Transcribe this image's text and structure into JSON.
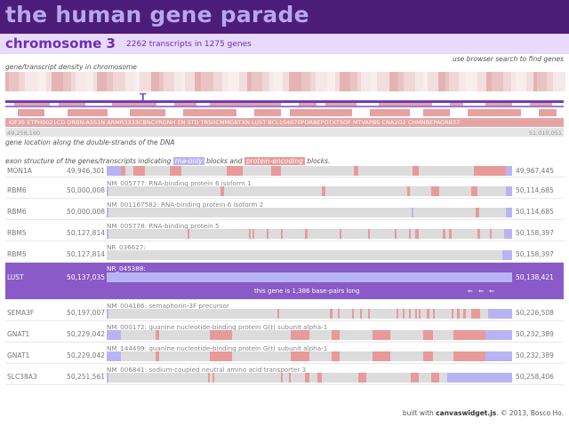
{
  "app": {
    "title": "the human gene parade"
  },
  "chromosome": {
    "title": "chromosome 3",
    "stats": "2262 transcripts in 1275 genes"
  },
  "notes": {
    "search_hint": "use browser search to find genes",
    "density_label": "gene/transcript density in chromosome",
    "location_label": "gene location along the double-strands of the DNA",
    "structure_prefix": "exon structure of the genes/transcripts indicating",
    "structure_rna": "rna-only",
    "structure_mid": "blocks and",
    "structure_protein": "protein-encoding",
    "structure_suffix": "blocks."
  },
  "density_marker": "T",
  "location": {
    "gene_labels": "KIF35  ETPH0021CD   ORBN-ASS1N  ARMR3333CBNCYRGNH  EN STD TRS0CMMGBTXN  LUST BCL1S4670PDRBEPOTXTSOF  MTVAPBS  CNA2O2  CHMNBEPAGRB37",
    "start_coord": "49,256,160",
    "end_coord": "51,010,051"
  },
  "colors": {
    "rna_only": "#b8b4f4",
    "protein_encoding": "#e89a9a",
    "track": "#dcdcdc",
    "selected_row": "#8a5ac8",
    "header": "#4b1c78",
    "chromosome_bar": "#e9d9fa"
  },
  "genes": [
    {
      "gene": "MON1A",
      "start": "49,946,301",
      "end": "49,967,445",
      "description": "",
      "selected": false,
      "exons": [
        {
          "s": 0.0,
          "e": 0.035,
          "t": "rna"
        },
        {
          "s": 0.035,
          "e": 0.045,
          "t": "protein"
        },
        {
          "s": 0.065,
          "e": 0.095,
          "t": "protein"
        },
        {
          "s": 0.065,
          "e": 0.075,
          "t": "protein"
        },
        {
          "s": 0.155,
          "e": 0.185,
          "t": "protein"
        },
        {
          "s": 0.295,
          "e": 0.335,
          "t": "protein"
        },
        {
          "s": 0.405,
          "e": 0.43,
          "t": "protein"
        },
        {
          "s": 0.61,
          "e": 0.62,
          "t": "protein"
        },
        {
          "s": 0.755,
          "e": 0.77,
          "t": "protein"
        },
        {
          "s": 0.905,
          "e": 0.985,
          "t": "protein"
        },
        {
          "s": 0.985,
          "e": 1.0,
          "t": "rna"
        }
      ]
    },
    {
      "gene": "RBM6",
      "start": "50,000,008",
      "end": "50,114,685",
      "description": "NM_005777: RNA-binding protein 6 isoform 1",
      "selected": false,
      "exons": [
        {
          "s": 0.0,
          "e": 0.004,
          "t": "rna"
        },
        {
          "s": 0.28,
          "e": 0.29,
          "t": "protein"
        },
        {
          "s": 0.53,
          "e": 0.54,
          "t": "protein"
        },
        {
          "s": 0.742,
          "e": 0.748,
          "t": "protein"
        },
        {
          "s": 0.8,
          "e": 0.82,
          "t": "protein"
        },
        {
          "s": 0.9,
          "e": 0.915,
          "t": "protein"
        },
        {
          "s": 0.985,
          "e": 1.0,
          "t": "rna"
        }
      ]
    },
    {
      "gene": "RBM6",
      "start": "50,000,008",
      "end": "50,114,685",
      "description": "NM_001167582: RNA-binding protein 6 isoform 2",
      "selected": false,
      "exons": [
        {
          "s": 0.0,
          "e": 0.004,
          "t": "rna"
        },
        {
          "s": 0.752,
          "e": 0.756,
          "t": "rna"
        },
        {
          "s": 0.91,
          "e": 0.918,
          "t": "protein"
        },
        {
          "s": 0.985,
          "e": 1.0,
          "t": "rna"
        }
      ]
    },
    {
      "gene": "RBM5",
      "start": "50,127,814",
      "end": "50,158,397",
      "description": "NM_005778: RNA-binding protein 5",
      "selected": false,
      "exons": [
        {
          "s": 0.0,
          "e": 0.005,
          "t": "rna"
        },
        {
          "s": 0.2,
          "e": 0.205,
          "t": "protein"
        },
        {
          "s": 0.35,
          "e": 0.355,
          "t": "protein"
        },
        {
          "s": 0.36,
          "e": 0.365,
          "t": "protein"
        },
        {
          "s": 0.395,
          "e": 0.4,
          "t": "protein"
        },
        {
          "s": 0.43,
          "e": 0.435,
          "t": "protein"
        },
        {
          "s": 0.49,
          "e": 0.495,
          "t": "protein"
        },
        {
          "s": 0.575,
          "e": 0.58,
          "t": "protein"
        },
        {
          "s": 0.645,
          "e": 0.65,
          "t": "protein"
        },
        {
          "s": 0.71,
          "e": 0.715,
          "t": "protein"
        },
        {
          "s": 0.745,
          "e": 0.75,
          "t": "protein"
        },
        {
          "s": 0.76,
          "e": 0.77,
          "t": "protein"
        },
        {
          "s": 0.83,
          "e": 0.835,
          "t": "protein"
        },
        {
          "s": 0.845,
          "e": 0.85,
          "t": "protein"
        },
        {
          "s": 0.915,
          "e": 0.92,
          "t": "protein"
        },
        {
          "s": 0.945,
          "e": 0.95,
          "t": "protein"
        },
        {
          "s": 0.98,
          "e": 1.0,
          "t": "rna"
        }
      ]
    },
    {
      "gene": "RBM5",
      "start": "50,127,814",
      "end": "50,158,397",
      "description": "NR_036627:",
      "selected": false,
      "exons": [
        {
          "s": 0.975,
          "e": 1.0,
          "t": "rna"
        }
      ]
    },
    {
      "gene": "LUST",
      "start": "50,137,035",
      "end": "50,138,421",
      "description": "NR_045388:",
      "selected": true,
      "length_note": "this gene is 1,386 base-pairs long",
      "arrows": "⇐ ⇐ ⇐",
      "exons": [
        {
          "s": 0.0,
          "e": 1.0,
          "t": "rna"
        }
      ]
    },
    {
      "gene": "SEMA3F",
      "start": "50,197,007",
      "end": "50,226,508",
      "description": "NM_004186: semaphorin-3F precursor",
      "selected": false,
      "exons": [
        {
          "s": 0.0,
          "e": 0.004,
          "t": "rna"
        },
        {
          "s": 0.42,
          "e": 0.425,
          "t": "protein"
        },
        {
          "s": 0.55,
          "e": 0.556,
          "t": "protein"
        },
        {
          "s": 0.57,
          "e": 0.575,
          "t": "protein"
        },
        {
          "s": 0.605,
          "e": 0.61,
          "t": "protein"
        },
        {
          "s": 0.625,
          "e": 0.63,
          "t": "protein"
        },
        {
          "s": 0.645,
          "e": 0.65,
          "t": "protein"
        },
        {
          "s": 0.715,
          "e": 0.72,
          "t": "protein"
        },
        {
          "s": 0.73,
          "e": 0.735,
          "t": "protein"
        },
        {
          "s": 0.745,
          "e": 0.75,
          "t": "protein"
        },
        {
          "s": 0.76,
          "e": 0.765,
          "t": "protein"
        },
        {
          "s": 0.77,
          "e": 0.775,
          "t": "protein"
        },
        {
          "s": 0.79,
          "e": 0.795,
          "t": "protein"
        },
        {
          "s": 0.805,
          "e": 0.81,
          "t": "protein"
        },
        {
          "s": 0.85,
          "e": 0.855,
          "t": "protein"
        },
        {
          "s": 0.865,
          "e": 0.87,
          "t": "protein"
        },
        {
          "s": 0.88,
          "e": 0.885,
          "t": "protein"
        },
        {
          "s": 0.9,
          "e": 0.92,
          "t": "protein"
        },
        {
          "s": 0.94,
          "e": 1.0,
          "t": "rna"
        }
      ]
    },
    {
      "gene": "GNAT1",
      "start": "50,229,042",
      "end": "50,232,389",
      "description": "NM_000172: guanine nucleotide-binding protein G(t) subunit alpha-1",
      "selected": false,
      "exons": [
        {
          "s": 0.0,
          "e": 0.035,
          "t": "rna"
        },
        {
          "s": 0.12,
          "e": 0.13,
          "t": "protein"
        },
        {
          "s": 0.255,
          "e": 0.31,
          "t": "protein"
        },
        {
          "s": 0.455,
          "e": 0.5,
          "t": "protein"
        },
        {
          "s": 0.555,
          "e": 0.575,
          "t": "protein"
        },
        {
          "s": 0.655,
          "e": 0.7,
          "t": "protein"
        },
        {
          "s": 0.78,
          "e": 0.805,
          "t": "protein"
        },
        {
          "s": 0.855,
          "e": 0.935,
          "t": "protein"
        },
        {
          "s": 0.935,
          "e": 1.0,
          "t": "rna"
        }
      ]
    },
    {
      "gene": "GNAT1",
      "start": "50,229,042",
      "end": "50,232,389",
      "description": "NM_144499: guanine nucleotide-binding protein G(t) subunit alpha-1",
      "selected": false,
      "exons": [
        {
          "s": 0.0,
          "e": 0.035,
          "t": "rna"
        },
        {
          "s": 0.12,
          "e": 0.13,
          "t": "protein"
        },
        {
          "s": 0.255,
          "e": 0.31,
          "t": "protein"
        },
        {
          "s": 0.455,
          "e": 0.5,
          "t": "protein"
        },
        {
          "s": 0.555,
          "e": 0.575,
          "t": "protein"
        },
        {
          "s": 0.655,
          "e": 0.7,
          "t": "protein"
        },
        {
          "s": 0.78,
          "e": 0.805,
          "t": "protein"
        },
        {
          "s": 0.855,
          "e": 0.935,
          "t": "protein"
        },
        {
          "s": 0.935,
          "e": 1.0,
          "t": "rna"
        }
      ]
    },
    {
      "gene": "SLC38A3",
      "start": "50,251,561",
      "end": "50,258,406",
      "description": "NM_006841: sodium-coupled neutral amino acid transporter 3",
      "selected": false,
      "exons": [
        {
          "s": 0.0,
          "e": 0.004,
          "t": "rna"
        },
        {
          "s": 0.25,
          "e": 0.255,
          "t": "protein"
        },
        {
          "s": 0.26,
          "e": 0.265,
          "t": "protein"
        },
        {
          "s": 0.43,
          "e": 0.435,
          "t": "protein"
        },
        {
          "s": 0.45,
          "e": 0.455,
          "t": "protein"
        },
        {
          "s": 0.49,
          "e": 0.5,
          "t": "protein"
        },
        {
          "s": 0.52,
          "e": 0.53,
          "t": "protein"
        },
        {
          "s": 0.62,
          "e": 0.64,
          "t": "protein"
        },
        {
          "s": 0.75,
          "e": 0.77,
          "t": "protein"
        },
        {
          "s": 0.8,
          "e": 0.82,
          "t": "protein"
        },
        {
          "s": 0.84,
          "e": 1.0,
          "t": "rna"
        }
      ]
    }
  ],
  "footer": {
    "prefix": "built with",
    "lib": "canvaswidget.js",
    "suffix": ". © 2013, Bosco Ho."
  }
}
